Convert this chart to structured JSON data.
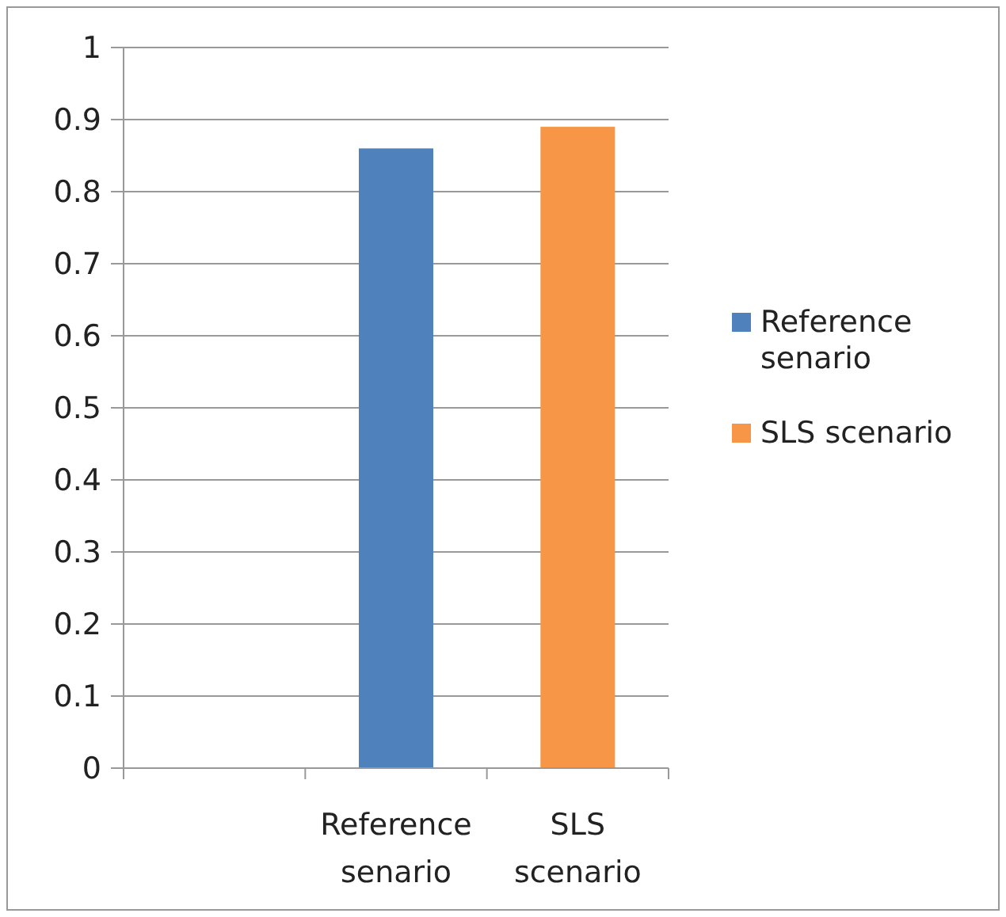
{
  "chart_data": {
    "type": "bar",
    "categories": [
      null,
      "Reference senario",
      "SLS scenario"
    ],
    "series": [
      {
        "name": "Reference senario",
        "color": "#4f81bd",
        "values": [
          null,
          0.86,
          null
        ]
      },
      {
        "name": "SLS scenario",
        "color": "#f79646",
        "values": [
          null,
          null,
          0.89
        ]
      }
    ],
    "ylim": [
      0,
      1
    ],
    "yticks": [
      0,
      0.1,
      0.2,
      0.3,
      0.4,
      0.5,
      0.6,
      0.7,
      0.8,
      0.9,
      1
    ],
    "grid": "y",
    "legend": "right"
  }
}
